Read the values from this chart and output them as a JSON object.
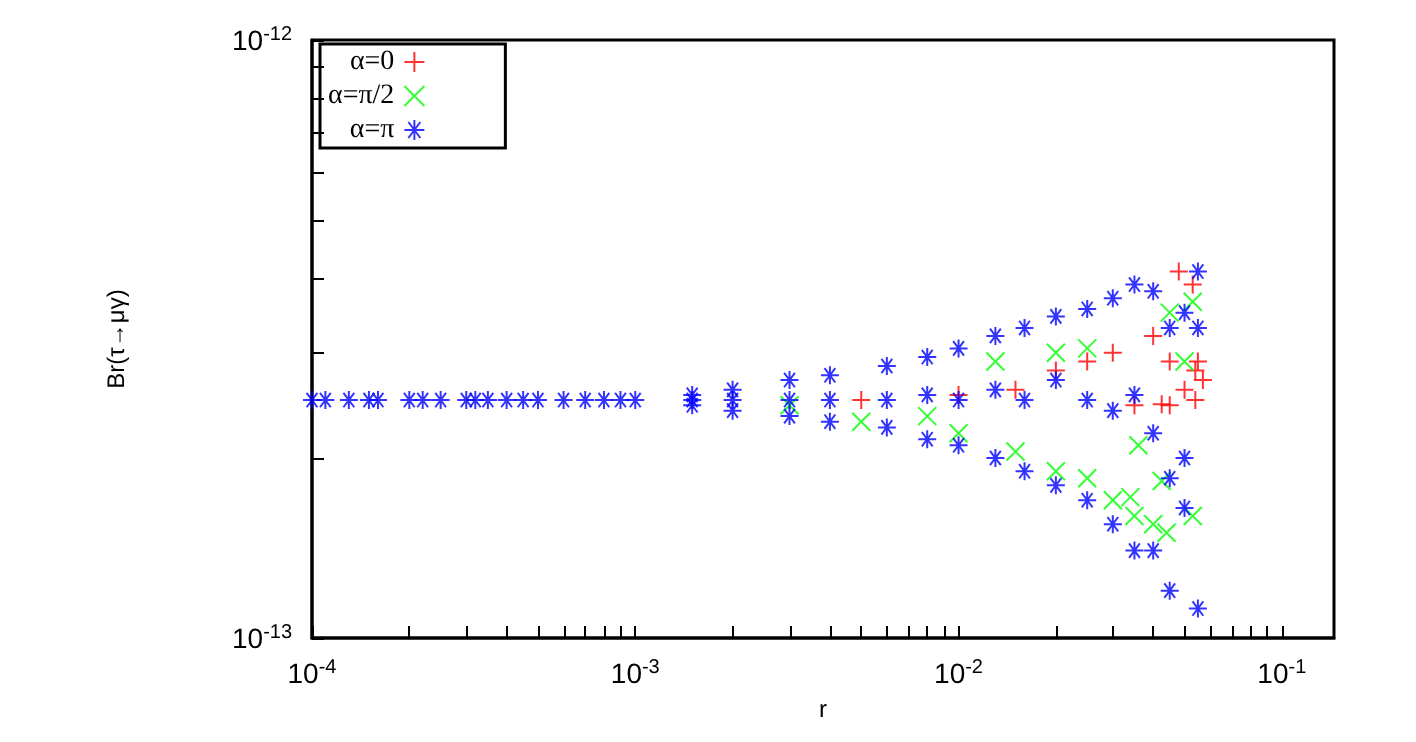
{
  "chart_data": {
    "type": "scatter",
    "xlabel": "r",
    "ylabel": "Br(τ→μγ)",
    "log": "xy",
    "grid": false,
    "legend": "top left",
    "xlim": [
      0.0001,
      0.145
    ],
    "ylim": [
      1e-13,
      1e-12
    ],
    "xticks": [
      {
        "value": 0.0001,
        "label": "10$^{-4}$"
      },
      {
        "value": 0.0002,
        "label": null
      },
      {
        "value": 0.0003,
        "label": null
      },
      {
        "value": 0.0004,
        "label": null
      },
      {
        "value": 0.0005,
        "label": null
      },
      {
        "value": 0.0006,
        "label": null
      },
      {
        "value": 0.0007,
        "label": null
      },
      {
        "value": 0.0008,
        "label": null
      },
      {
        "value": 0.0009,
        "label": null
      },
      {
        "value": 0.001,
        "label": "10$^{-3}$"
      },
      {
        "value": 0.002,
        "label": null
      },
      {
        "value": 0.003,
        "label": null
      },
      {
        "value": 0.004,
        "label": null
      },
      {
        "value": 0.005,
        "label": null
      },
      {
        "value": 0.006,
        "label": null
      },
      {
        "value": 0.007,
        "label": null
      },
      {
        "value": 0.008,
        "label": null
      },
      {
        "value": 0.009,
        "label": null
      },
      {
        "value": 0.01,
        "label": "10$^{-2}$"
      },
      {
        "value": 0.02,
        "label": null
      },
      {
        "value": 0.03,
        "label": null
      },
      {
        "value": 0.04,
        "label": null
      },
      {
        "value": 0.05,
        "label": null
      },
      {
        "value": 0.06,
        "label": null
      },
      {
        "value": 0.07,
        "label": null
      },
      {
        "value": 0.08,
        "label": null
      },
      {
        "value": 0.09,
        "label": null
      },
      {
        "value": 0.1,
        "label": "10$^{-1}$"
      }
    ],
    "yticks": [
      {
        "value": 1e-13,
        "label": "10$^{-13}$"
      },
      {
        "value": 2e-13,
        "label": null
      },
      {
        "value": 3e-13,
        "label": null
      },
      {
        "value": 4e-13,
        "label": null
      },
      {
        "value": 5e-13,
        "label": null
      },
      {
        "value": 6e-13,
        "label": null
      },
      {
        "value": 7e-13,
        "label": null
      },
      {
        "value": 8e-13,
        "label": null
      },
      {
        "value": 9e-13,
        "label": null
      },
      {
        "value": 1e-12,
        "label": "10$^{-12}$"
      }
    ],
    "series": [
      {
        "name": "α=0",
        "color": "#ff0000",
        "marker": "plus",
        "x": [
          0.005,
          0.01,
          0.015,
          0.02,
          0.025,
          0.03,
          0.035,
          0.04,
          0.0425,
          0.045,
          0.045,
          0.048,
          0.05,
          0.053,
          0.054,
          0.054,
          0.055,
          0.057
        ],
        "values": [
          2.5e-13,
          2.55e-13,
          2.6e-13,
          2.8e-13,
          2.9e-13,
          3e-13,
          2.45e-13,
          3.2e-13,
          2.46e-13,
          2.9e-13,
          2.45e-13,
          4.1e-13,
          2.6e-13,
          3.9e-13,
          2.8e-13,
          2.5e-13,
          2.9e-13,
          2.7e-13
        ]
      },
      {
        "name": "α=π/2",
        "color": "#00ff00",
        "marker": "cross",
        "x": [
          0.003,
          0.005,
          0.008,
          0.01,
          0.013,
          0.015,
          0.02,
          0.02,
          0.025,
          0.025,
          0.03,
          0.034,
          0.035,
          0.036,
          0.04,
          0.0425,
          0.044,
          0.045,
          0.053,
          0.053,
          0.05
        ],
        "values": [
          2.45e-13,
          2.3e-13,
          2.35e-13,
          2.2e-13,
          2.9e-13,
          2.05e-13,
          3e-13,
          1.9e-13,
          3.05e-13,
          1.85e-13,
          1.7e-13,
          1.72e-13,
          1.6e-13,
          2.1e-13,
          1.55e-13,
          1.83e-13,
          1.5e-13,
          3.5e-13,
          1.6e-13,
          3.65e-13,
          2.9e-13
        ]
      },
      {
        "name": "α=π",
        "color": "#0000ff",
        "x": [
          0.0001,
          0.00011,
          0.00013,
          0.00015,
          0.00016,
          0.0002,
          0.00022,
          0.00025,
          0.0003,
          0.00032,
          0.00035,
          0.0004,
          0.00045,
          0.0005,
          0.0006,
          0.0007,
          0.0008,
          0.0009,
          0.001,
          0.0015,
          0.0015,
          0.0015,
          0.002,
          0.002,
          0.002,
          0.003,
          0.003,
          0.003,
          0.004,
          0.004,
          0.004,
          0.006,
          0.006,
          0.006,
          0.008,
          0.008,
          0.008,
          0.01,
          0.01,
          0.01,
          0.013,
          0.013,
          0.013,
          0.016,
          0.016,
          0.016,
          0.02,
          0.02,
          0.02,
          0.025,
          0.025,
          0.025,
          0.03,
          0.03,
          0.03,
          0.035,
          0.035,
          0.035,
          0.04,
          0.04,
          0.04,
          0.045,
          0.045,
          0.045,
          0.05,
          0.05,
          0.05,
          0.055,
          0.055,
          0.055
        ],
        "values": [
          2.5e-13,
          2.5e-13,
          2.5e-13,
          2.5e-13,
          2.5e-13,
          2.5e-13,
          2.5e-13,
          2.5e-13,
          2.5e-13,
          2.5e-13,
          2.5e-13,
          2.5e-13,
          2.5e-13,
          2.5e-13,
          2.5e-13,
          2.5e-13,
          2.5e-13,
          2.5e-13,
          2.5e-13,
          2.55e-13,
          2.5e-13,
          2.45e-13,
          2.6e-13,
          2.5e-13,
          2.4e-13,
          2.7e-13,
          2.5e-13,
          2.35e-13,
          2.75e-13,
          2.5e-13,
          2.3e-13,
          2.85e-13,
          2.5e-13,
          2.25e-13,
          2.95e-13,
          2.55e-13,
          2.15e-13,
          3.05e-13,
          2.5e-13,
          2.1e-13,
          3.2e-13,
          2.6e-13,
          2e-13,
          3.3e-13,
          2.5e-13,
          1.9e-13,
          3.45e-13,
          2.7e-13,
          1.8e-13,
          3.55e-13,
          2.5e-13,
          1.7e-13,
          3.7e-13,
          2.4e-13,
          1.55e-13,
          3.9e-13,
          2.55e-13,
          1.4e-13,
          3.8e-13,
          2.2e-13,
          1.4e-13,
          3.3e-13,
          1.85e-13,
          1.2e-13,
          3.5e-13,
          2e-13,
          1.65e-13,
          4.1e-13,
          3.3e-13,
          1.12e-13
        ]
      }
    ]
  }
}
